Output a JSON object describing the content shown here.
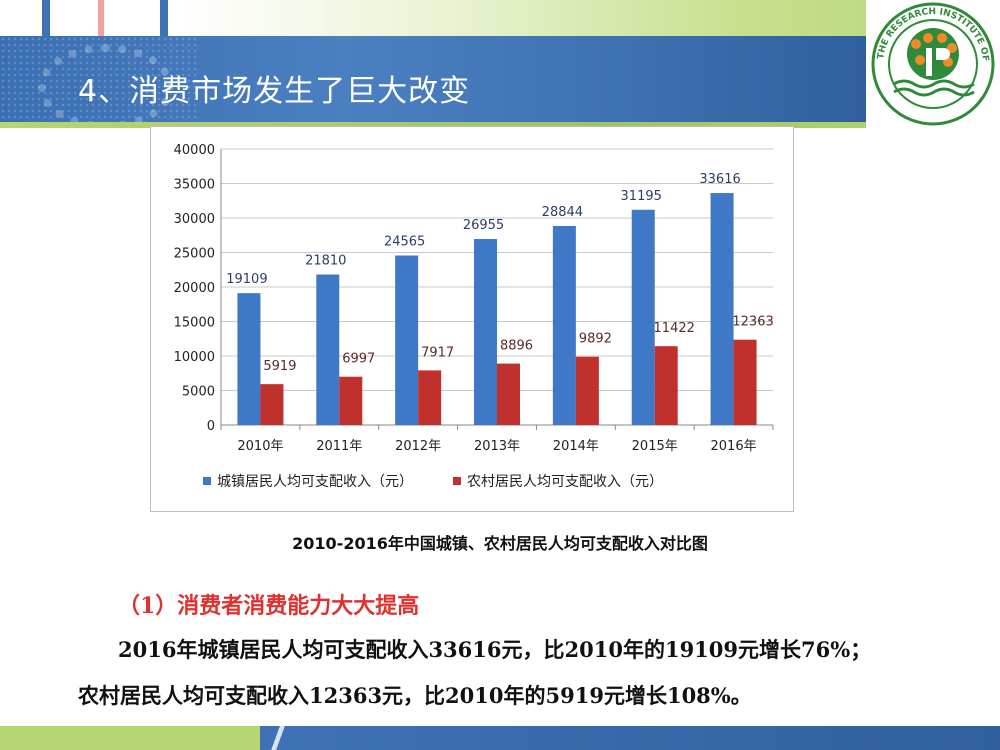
{
  "slide": {
    "title": "4、消费市场发生了巨大改变",
    "caption": "2010-2016年中国城镇、农村居民人均可支配收入对比图",
    "point_title": "（1）消费者消费能力大大提高",
    "body_line1": "2016年城镇居民人均可支配收入33616元，比2010年的19109元增长76%；",
    "body_line2": "农村居民人均可支配收入12363元，比2010年的5919元增长108%。",
    "logo_text": "THE RESEARCH INSTITUTE OF POMOLOGY CAAS",
    "logo_icon": "pomology-institute-logo"
  },
  "colors": {
    "urban": "#3f78c6",
    "rural": "#c0302c",
    "title_band": "#3f72b4",
    "accent_green": "#b6d674"
  },
  "chart_data": {
    "type": "bar",
    "title": "",
    "xlabel": "",
    "ylabel": "",
    "ylim": [
      0,
      40000
    ],
    "yticks": [
      0,
      5000,
      10000,
      15000,
      20000,
      25000,
      30000,
      35000,
      40000
    ],
    "grid": true,
    "legend_position": "bottom",
    "categories": [
      "2010年",
      "2011年",
      "2012年",
      "2013年",
      "2014年",
      "2015年",
      "2016年"
    ],
    "series": [
      {
        "name": "城镇居民人均可支配收入（元）",
        "values": [
          19109,
          21810,
          24565,
          26955,
          28844,
          31195,
          33616
        ]
      },
      {
        "name": "农村居民人均可支配收入（元）",
        "values": [
          5919,
          6997,
          7917,
          8896,
          9892,
          11422,
          12363
        ]
      }
    ]
  }
}
